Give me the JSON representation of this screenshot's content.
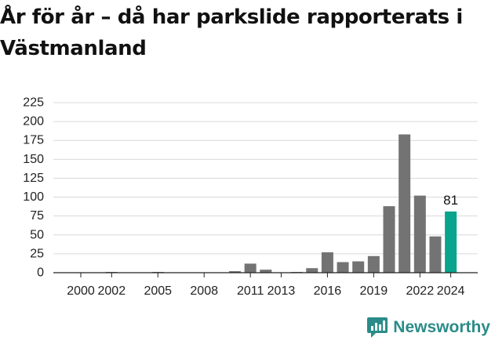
{
  "title": "År för år – då har parkslide rapporterats i Västmanland",
  "brand": {
    "name": "Newsworthy",
    "logo_icon": "newsworthy-chart-icon",
    "color": "#2a8c88"
  },
  "colors": {
    "bar": "#737373",
    "highlight": "#0aa38d",
    "grid": "#d9d9d9",
    "axis": "#222222"
  },
  "chart_data": {
    "type": "bar",
    "title": "År för år – då har parkslide rapporterats i Västmanland",
    "xlabel": "",
    "ylabel": "",
    "ylim": [
      0,
      225
    ],
    "y_ticks": [
      0,
      25,
      50,
      75,
      100,
      125,
      150,
      175,
      200,
      225
    ],
    "x_tick_labels": [
      "2000",
      "2002",
      "2005",
      "2008",
      "2011",
      "2013",
      "2016",
      "2019",
      "2022",
      "2024"
    ],
    "grid": true,
    "categories": [
      "2000",
      "2001",
      "2002",
      "2003",
      "2004",
      "2005",
      "2006",
      "2007",
      "2008",
      "2009",
      "2010",
      "2011",
      "2012",
      "2013",
      "2014",
      "2015",
      "2016",
      "2017",
      "2018",
      "2019",
      "2020",
      "2021",
      "2022",
      "2023",
      "2024"
    ],
    "values": [
      0,
      0,
      1,
      0,
      0,
      1,
      0,
      0,
      0,
      0,
      2,
      12,
      4,
      0,
      1,
      6,
      27,
      14,
      15,
      22,
      88,
      183,
      102,
      48,
      81
    ],
    "highlight_category": "2024",
    "data_labels": [
      {
        "category": "2024",
        "text": "81"
      }
    ]
  }
}
